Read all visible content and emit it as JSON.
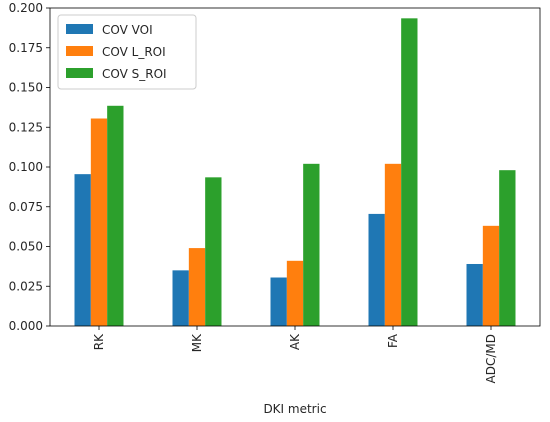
{
  "chart_data": {
    "type": "bar",
    "title": "",
    "xlabel": "DKI metric",
    "ylabel": "",
    "categories": [
      "RK",
      "MK",
      "AK",
      "FA",
      "ADC/MD"
    ],
    "series": [
      {
        "name": "COV VOI",
        "color": "#1f77b4",
        "values": [
          0.0955,
          0.035,
          0.0305,
          0.0705,
          0.039
        ]
      },
      {
        "name": "COV L_ROI",
        "color": "#ff7f0e",
        "values": [
          0.1305,
          0.049,
          0.041,
          0.102,
          0.063
        ]
      },
      {
        "name": "COV S_ROI",
        "color": "#2ca02c",
        "values": [
          0.1385,
          0.0935,
          0.102,
          0.1935,
          0.098
        ]
      }
    ],
    "ylim": [
      0,
      0.2
    ],
    "yticks": [
      "0.000",
      "0.025",
      "0.050",
      "0.075",
      "0.100",
      "0.125",
      "0.150",
      "0.175",
      "0.200"
    ],
    "grid": false,
    "legend_position": "top-left"
  }
}
